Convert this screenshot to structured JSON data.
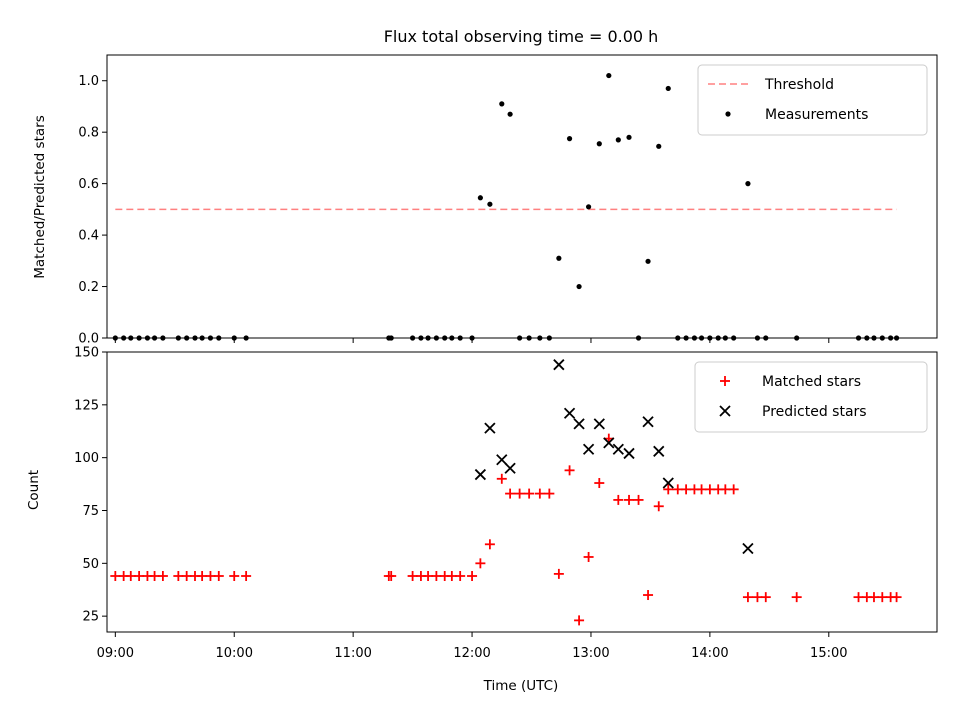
{
  "title": "Flux total observing time = 0.00 h",
  "chart_data": [
    {
      "type": "scatter",
      "ylabel": "Matched/Predicted stars",
      "xlim": [
        8.93,
        15.91
      ],
      "ylim": [
        0,
        1.1
      ],
      "yticks": [
        0.0,
        0.2,
        0.4,
        0.6,
        0.8,
        1.0
      ],
      "threshold": {
        "name": "Threshold",
        "y": 0.5,
        "x_range": [
          9.0,
          15.57
        ],
        "color": "#ff8080",
        "style": "dashed"
      },
      "series": [
        {
          "name": "Measurements",
          "color": "#000000",
          "marker": "dot",
          "points": [
            [
              9.0,
              0
            ],
            [
              9.07,
              0
            ],
            [
              9.13,
              0
            ],
            [
              9.2,
              0
            ],
            [
              9.27,
              0
            ],
            [
              9.33,
              0
            ],
            [
              9.4,
              0
            ],
            [
              9.53,
              0
            ],
            [
              9.6,
              0
            ],
            [
              9.67,
              0
            ],
            [
              9.73,
              0
            ],
            [
              9.8,
              0
            ],
            [
              9.87,
              0
            ],
            [
              10.0,
              0
            ],
            [
              10.1,
              0
            ],
            [
              11.3,
              0
            ],
            [
              11.32,
              0
            ],
            [
              11.5,
              0
            ],
            [
              11.57,
              0
            ],
            [
              11.63,
              0
            ],
            [
              11.7,
              0
            ],
            [
              11.77,
              0
            ],
            [
              11.83,
              0
            ],
            [
              11.9,
              0
            ],
            [
              12.0,
              0
            ],
            [
              12.07,
              0.545
            ],
            [
              12.15,
              0.52
            ],
            [
              12.25,
              0.91
            ],
            [
              12.32,
              0.87
            ],
            [
              12.4,
              0
            ],
            [
              12.48,
              0
            ],
            [
              12.57,
              0
            ],
            [
              12.65,
              0
            ],
            [
              12.73,
              0.31
            ],
            [
              12.82,
              0.775
            ],
            [
              12.9,
              0.2
            ],
            [
              12.98,
              0.51
            ],
            [
              13.07,
              0.755
            ],
            [
              13.15,
              1.02
            ],
            [
              13.23,
              0.77
            ],
            [
              13.32,
              0.78
            ],
            [
              13.4,
              0
            ],
            [
              13.48,
              0.298
            ],
            [
              13.57,
              0.745
            ],
            [
              13.65,
              0.97
            ],
            [
              13.73,
              0
            ],
            [
              13.8,
              0
            ],
            [
              13.87,
              0
            ],
            [
              13.93,
              0
            ],
            [
              14.0,
              0
            ],
            [
              14.07,
              0
            ],
            [
              14.13,
              0
            ],
            [
              14.2,
              0
            ],
            [
              14.32,
              0.6
            ],
            [
              14.4,
              0
            ],
            [
              14.47,
              0
            ],
            [
              14.73,
              0
            ],
            [
              15.25,
              0
            ],
            [
              15.32,
              0
            ],
            [
              15.38,
              0
            ],
            [
              15.45,
              0
            ],
            [
              15.52,
              0
            ],
            [
              15.57,
              0
            ]
          ]
        }
      ],
      "legend": {
        "position": "top-right",
        "entries": [
          "Threshold",
          "Measurements"
        ]
      }
    },
    {
      "type": "scatter",
      "xlabel": "Time (UTC)",
      "ylabel": "Count",
      "xlim": [
        8.93,
        15.91
      ],
      "ylim": [
        17.5,
        150
      ],
      "yticks": [
        25,
        50,
        75,
        100,
        125,
        150
      ],
      "xticks": [
        9,
        10,
        11,
        12,
        13,
        14,
        15
      ],
      "xtick_labels": [
        "09:00",
        "10:00",
        "11:00",
        "12:00",
        "13:00",
        "14:00",
        "15:00"
      ],
      "series": [
        {
          "name": "Matched stars",
          "color": "#ff0000",
          "marker": "plus",
          "points": [
            [
              9.0,
              44
            ],
            [
              9.07,
              44
            ],
            [
              9.13,
              44
            ],
            [
              9.2,
              44
            ],
            [
              9.27,
              44
            ],
            [
              9.33,
              44
            ],
            [
              9.4,
              44
            ],
            [
              9.53,
              44
            ],
            [
              9.6,
              44
            ],
            [
              9.67,
              44
            ],
            [
              9.73,
              44
            ],
            [
              9.8,
              44
            ],
            [
              9.87,
              44
            ],
            [
              10.0,
              44
            ],
            [
              10.1,
              44
            ],
            [
              11.3,
              44
            ],
            [
              11.32,
              44
            ],
            [
              11.5,
              44
            ],
            [
              11.57,
              44
            ],
            [
              11.63,
              44
            ],
            [
              11.7,
              44
            ],
            [
              11.77,
              44
            ],
            [
              11.83,
              44
            ],
            [
              11.9,
              44
            ],
            [
              12.0,
              44
            ],
            [
              12.07,
              50
            ],
            [
              12.15,
              59
            ],
            [
              12.25,
              90
            ],
            [
              12.32,
              83
            ],
            [
              12.4,
              83
            ],
            [
              12.48,
              83
            ],
            [
              12.57,
              83
            ],
            [
              12.65,
              83
            ],
            [
              12.73,
              45
            ],
            [
              12.82,
              94
            ],
            [
              12.9,
              23
            ],
            [
              12.98,
              53
            ],
            [
              13.07,
              88
            ],
            [
              13.15,
              109
            ],
            [
              13.23,
              80
            ],
            [
              13.32,
              80
            ],
            [
              13.4,
              80
            ],
            [
              13.48,
              35
            ],
            [
              13.57,
              77
            ],
            [
              13.65,
              85
            ],
            [
              13.73,
              85
            ],
            [
              13.8,
              85
            ],
            [
              13.87,
              85
            ],
            [
              13.93,
              85
            ],
            [
              14.0,
              85
            ],
            [
              14.07,
              85
            ],
            [
              14.13,
              85
            ],
            [
              14.2,
              85
            ],
            [
              14.32,
              34
            ],
            [
              14.4,
              34
            ],
            [
              14.47,
              34
            ],
            [
              14.73,
              34
            ],
            [
              15.25,
              34
            ],
            [
              15.32,
              34
            ],
            [
              15.38,
              34
            ],
            [
              15.45,
              34
            ],
            [
              15.52,
              34
            ],
            [
              15.57,
              34
            ]
          ]
        },
        {
          "name": "Predicted stars",
          "color": "#000000",
          "marker": "x",
          "points": [
            [
              12.07,
              92
            ],
            [
              12.15,
              114
            ],
            [
              12.25,
              99
            ],
            [
              12.32,
              95
            ],
            [
              12.73,
              144
            ],
            [
              12.82,
              121
            ],
            [
              12.9,
              116
            ],
            [
              12.98,
              104
            ],
            [
              13.07,
              116
            ],
            [
              13.15,
              107
            ],
            [
              13.23,
              104
            ],
            [
              13.32,
              102
            ],
            [
              13.48,
              117
            ],
            [
              13.57,
              103
            ],
            [
              13.65,
              88
            ],
            [
              14.32,
              57
            ]
          ]
        }
      ],
      "legend": {
        "position": "top-right",
        "entries": [
          "Matched stars",
          "Predicted stars"
        ]
      }
    }
  ]
}
